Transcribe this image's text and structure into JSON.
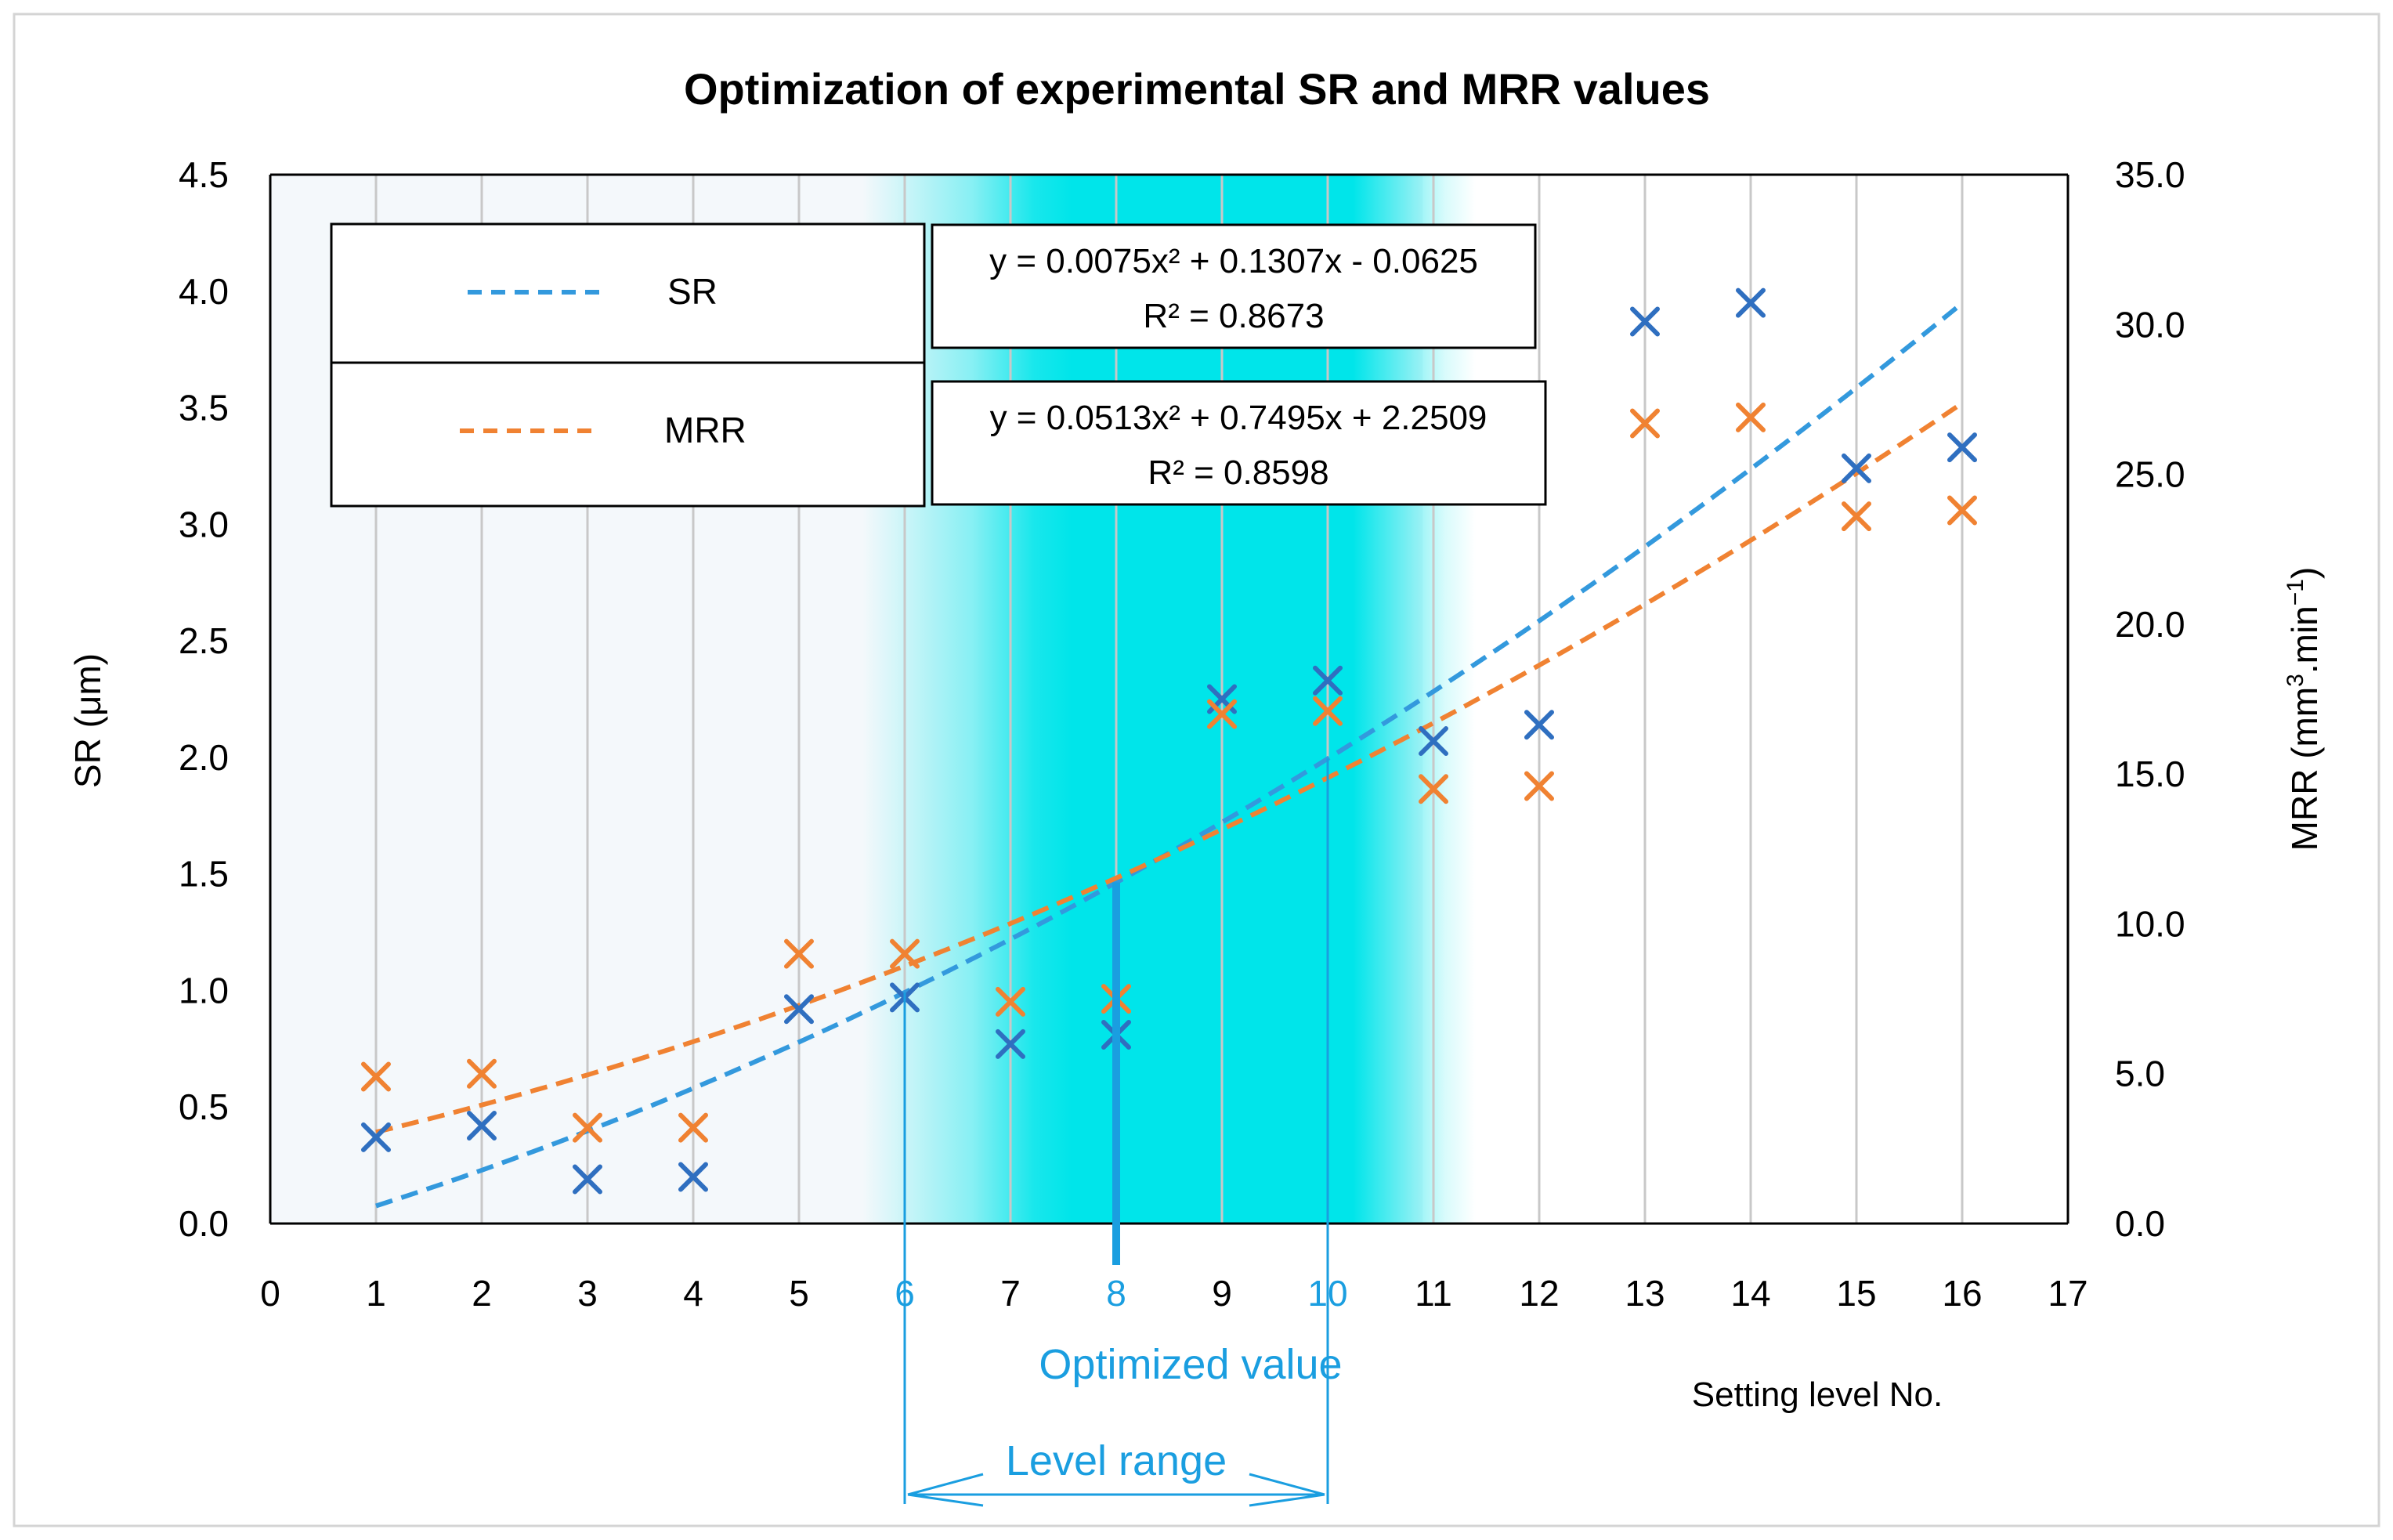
{
  "chart_data": {
    "type": "scatter",
    "title": "Optimization of experimental SR and MRR values",
    "xlabel": "Setting level No.",
    "ylabel_left": "SR (μm)",
    "ylabel_right_main": "MRR (mm",
    "ylabel_right_sup1": "3",
    "ylabel_right_mid": ".min",
    "ylabel_right_sup2": "−1",
    "ylabel_right_end": ")",
    "x_range": [
      0,
      17
    ],
    "x_ticks": [
      "0",
      "1",
      "2",
      "3",
      "4",
      "5",
      "6",
      "7",
      "8",
      "9",
      "10",
      "11",
      "12",
      "13",
      "14",
      "15",
      "16",
      "17"
    ],
    "y_left_range": [
      0,
      4.5
    ],
    "y_left_ticks": [
      "0.0",
      "0.5",
      "1.0",
      "1.5",
      "2.0",
      "2.5",
      "3.0",
      "3.5",
      "4.0",
      "4.5"
    ],
    "y_right_range": [
      0,
      35
    ],
    "y_right_ticks": [
      "0.0",
      "5.0",
      "10.0",
      "15.0",
      "20.0",
      "25.0",
      "30.0",
      "35.0"
    ],
    "x": [
      1,
      2,
      3,
      4,
      5,
      6,
      7,
      8,
      9,
      10,
      11,
      12,
      13,
      14,
      15,
      16
    ],
    "series": [
      {
        "name": "SR",
        "axis": "left",
        "color": "#2f6fc0",
        "trend_color": "#3399dd",
        "values": [
          0.37,
          0.42,
          0.19,
          0.2,
          0.92,
          0.97,
          0.77,
          0.81,
          2.25,
          2.33,
          2.07,
          2.14,
          3.87,
          3.95,
          3.24,
          3.33
        ],
        "trend": {
          "a": 0.0075,
          "b": 0.1307,
          "c": -0.0625,
          "equation": "y = 0.0075x² + 0.1307x - 0.0625",
          "r2": "R² = 0.8673"
        }
      },
      {
        "name": "MRR",
        "axis": "right",
        "color": "#f08232",
        "trend_color": "#f08232",
        "values": [
          4.9,
          5.0,
          3.2,
          3.2,
          9.0,
          9.0,
          7.4,
          7.5,
          17.0,
          17.1,
          14.5,
          14.6,
          26.7,
          26.9,
          23.6,
          23.8
        ],
        "trend": {
          "a": 0.0513,
          "b": 0.7495,
          "c": 2.2509,
          "equation": "y = 0.0513x² + 0.7495x + 2.2509",
          "r2": "R² = 0.8598"
        }
      }
    ],
    "highlight": {
      "optimized_level": 8,
      "range_start": 6,
      "range_end": 10
    },
    "annotations": {
      "optimized_value": "Optimized value",
      "level_range": "Level range",
      "tick_6": "6",
      "tick_8": "8",
      "tick_10": "10"
    },
    "legend": {
      "position": "top-left",
      "entries": [
        "SR",
        "MRR"
      ]
    }
  },
  "colors": {
    "plot_bg": "#f4f8fb",
    "highlight": "#00e5ea",
    "annotation": "#1a9ee0",
    "grid": "#c8c8c8"
  }
}
